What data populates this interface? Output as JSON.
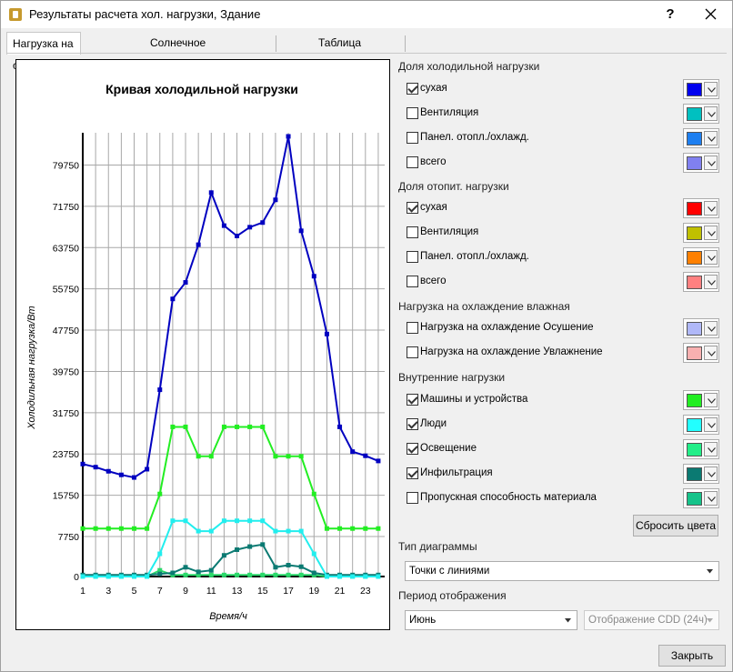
{
  "window": {
    "title": "Результаты расчета хол. нагрузки, Здание",
    "help_label": "?"
  },
  "tabs": [
    {
      "label": "Нагрузка на охлаждение"
    },
    {
      "label": "Солнечное излучение"
    },
    {
      "label": "Таблица"
    }
  ],
  "chart_data": {
    "type": "line",
    "title": "Кривая холодильной нагрузки",
    "xlabel": "Время/ч",
    "ylabel": "Холодильная нагрузка/Вт",
    "x": [
      1,
      2,
      3,
      4,
      5,
      6,
      7,
      8,
      9,
      10,
      11,
      12,
      13,
      14,
      15,
      16,
      17,
      18,
      19,
      20,
      21,
      22,
      23,
      24
    ],
    "x_ticks": [
      "1",
      "3",
      "5",
      "7",
      "9",
      "11",
      "13",
      "15",
      "17",
      "19",
      "21",
      "23"
    ],
    "y_ticks": [
      "0",
      "7750",
      "15750",
      "23750",
      "31750",
      "39750",
      "47750",
      "55750",
      "63750",
      "71750",
      "79750"
    ],
    "ylim": [
      0,
      86000
    ],
    "grid": true,
    "series": [
      {
        "color": "#0000c0",
        "values": [
          21800,
          21200,
          20400,
          19700,
          19200,
          20800,
          36200,
          53800,
          57000,
          64300,
          74400,
          68000,
          66000,
          67700,
          68600,
          73000,
          85300,
          67000,
          58200,
          47000,
          29000,
          24200,
          23400,
          22400
        ]
      },
      {
        "color": "#22ee22",
        "values": [
          9300,
          9300,
          9300,
          9300,
          9300,
          9300,
          16000,
          29000,
          29000,
          23300,
          23300,
          29000,
          29000,
          29000,
          29000,
          23300,
          23300,
          23300,
          16000,
          9300,
          9300,
          9300,
          9300,
          9300
        ]
      },
      {
        "color": "#22eeee",
        "values": [
          0,
          0,
          0,
          0,
          0,
          0,
          4400,
          10800,
          10800,
          8800,
          8800,
          10800,
          10800,
          10800,
          10800,
          8800,
          8800,
          8800,
          4400,
          0,
          0,
          0,
          0,
          0
        ]
      },
      {
        "color": "#0b7a72",
        "values": [
          300,
          300,
          300,
          300,
          300,
          300,
          500,
          700,
          1800,
          900,
          1200,
          4100,
          5200,
          5800,
          6200,
          1800,
          2200,
          1900,
          700,
          300,
          300,
          300,
          300,
          300
        ]
      },
      {
        "color": "#2bd96b",
        "values": [
          0,
          0,
          0,
          0,
          0,
          0,
          1200,
          300,
          300,
          300,
          300,
          300,
          300,
          300,
          300,
          300,
          300,
          300,
          300,
          0,
          0,
          0,
          0,
          0
        ]
      }
    ]
  },
  "sections": {
    "cold": {
      "label": "Доля холодильной нагрузки",
      "items": [
        {
          "label": "сухая",
          "checked": true,
          "color": "#0000ee"
        },
        {
          "label": "Вентиляция",
          "checked": false,
          "color": "#00c0c0"
        },
        {
          "label": "Панел. отопл./охлажд.",
          "checked": false,
          "color": "#1e7ff0"
        },
        {
          "label": "всего",
          "checked": false,
          "color": "#8080f0"
        }
      ]
    },
    "heat": {
      "label": "Доля отопит. нагрузки",
      "items": [
        {
          "label": "сухая",
          "checked": true,
          "color": "#ff0000"
        },
        {
          "label": "Вентиляция",
          "checked": false,
          "color": "#c0c000"
        },
        {
          "label": "Панел. отопл./охлажд.",
          "checked": false,
          "color": "#ff8000"
        },
        {
          "label": "всего",
          "checked": false,
          "color": "#ff8080"
        }
      ]
    },
    "moist": {
      "label": "Нагрузка на охлаждение влажная",
      "items": [
        {
          "label": "Нагрузка на охлаждение Осушение",
          "checked": false,
          "color": "#b0b8f8"
        },
        {
          "label": "Нагрузка на охлаждение Увлажнение",
          "checked": false,
          "color": "#f8b0b0"
        }
      ]
    },
    "internal": {
      "label": "Внутренние нагрузки",
      "items": [
        {
          "label": "Машины и устройства",
          "checked": true,
          "color": "#22ee22"
        },
        {
          "label": "Люди",
          "checked": true,
          "color": "#22ffff"
        },
        {
          "label": "Освещение",
          "checked": true,
          "color": "#22ee88"
        },
        {
          "label": "Инфильтрация",
          "checked": true,
          "color": "#0b7a72"
        },
        {
          "label": "Пропускная способность материала",
          "checked": false,
          "color": "#16c38a"
        }
      ]
    }
  },
  "reset_colors_label": "Сбросить цвета",
  "diagram_type": {
    "label": "Тип диаграммы",
    "value": "Точки с линиями"
  },
  "display_period": {
    "label": "Период отображения",
    "month": "Июнь",
    "mode": "Отображение CDD (24ч)"
  },
  "close_label": "Закрыть"
}
